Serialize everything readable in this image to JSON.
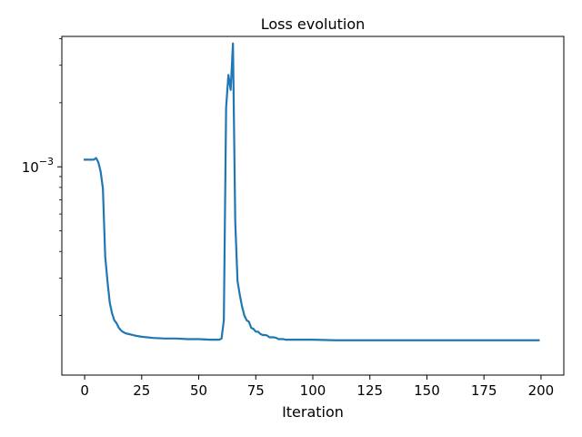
{
  "chart_data": {
    "type": "line",
    "title": "Loss evolution",
    "xlabel": "Iteration",
    "ylabel": "",
    "xlim": [
      -10,
      210
    ],
    "ylim": [
      0.000105,
      0.0041
    ],
    "yscale": "log",
    "grid": false,
    "xticks": [
      0,
      25,
      50,
      75,
      100,
      125,
      150,
      175,
      200
    ],
    "xtick_labels": [
      "0",
      "25",
      "50",
      "75",
      "100",
      "125",
      "150",
      "175",
      "200"
    ],
    "yticks_major": [
      0.001
    ],
    "ytick_base": "10",
    "ytick_exp": "−3",
    "yticks_minor": [
      0.0002,
      0.0003,
      0.0004,
      0.0005,
      0.0006,
      0.0007,
      0.0008,
      0.0009,
      0.002,
      0.003,
      0.004
    ],
    "line_color": "#1f77b4",
    "series": [
      {
        "x": [
          0,
          2,
          4,
          5,
          6,
          7,
          8,
          9,
          10,
          11,
          12,
          13,
          14,
          15,
          16,
          17,
          18,
          20,
          22,
          25,
          30,
          35,
          40,
          45,
          50,
          55,
          58,
          59,
          60,
          61,
          62,
          63,
          64,
          65,
          66,
          67,
          68,
          69,
          70,
          71,
          72,
          73,
          74,
          75,
          76,
          77,
          78,
          79,
          80,
          81,
          82,
          83,
          84,
          85,
          86,
          87,
          88,
          90,
          95,
          100,
          110,
          120,
          130,
          140,
          150,
          160,
          170,
          180,
          190,
          199
        ],
        "y": [
          0.00108,
          0.00108,
          0.00108,
          0.0011,
          0.00105,
          0.00095,
          0.00079,
          0.00038,
          0.00029,
          0.00023,
          0.000205,
          0.00019,
          0.000184,
          0.000175,
          0.00017,
          0.000167,
          0.000165,
          0.000163,
          0.000161,
          0.000159,
          0.000157,
          0.000156,
          0.000156,
          0.000155,
          0.000155,
          0.000154,
          0.000154,
          0.000154,
          0.000156,
          0.00019,
          0.0019,
          0.0027,
          0.0023,
          0.0038,
          0.00055,
          0.00029,
          0.00025,
          0.00022,
          0.0002,
          0.00019,
          0.000187,
          0.000175,
          0.000173,
          0.000168,
          0.000168,
          0.000164,
          0.000162,
          0.000162,
          0.000161,
          0.000158,
          0.000158,
          0.000158,
          0.000157,
          0.000155,
          0.000155,
          0.000155,
          0.000154,
          0.000154,
          0.000154,
          0.000154,
          0.000153,
          0.000153,
          0.000153,
          0.000153,
          0.000153,
          0.000153,
          0.000153,
          0.000153,
          0.000153,
          0.000153
        ]
      }
    ]
  }
}
